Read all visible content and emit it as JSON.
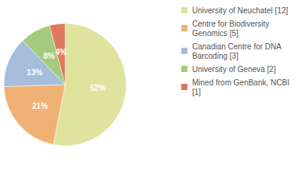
{
  "chart_data": {
    "type": "pie",
    "categories": [
      "University of Neuchatel [12]",
      "Centre for Biodiversity Genomics [5]",
      "Canadian Centre for DNA Barcoding [3]",
      "University of Geneva [2]",
      "Mined from GenBank, NCBI [1]"
    ],
    "values": [
      52,
      21,
      13,
      8,
      4
    ],
    "value_labels": [
      "52%",
      "21%",
      "13%",
      "8%",
      "4%"
    ],
    "colors": [
      "#dfe39d",
      "#f0b174",
      "#a6bddc",
      "#a5ca7d",
      "#e0785e"
    ],
    "data_labels": true,
    "legend": "top-right"
  }
}
